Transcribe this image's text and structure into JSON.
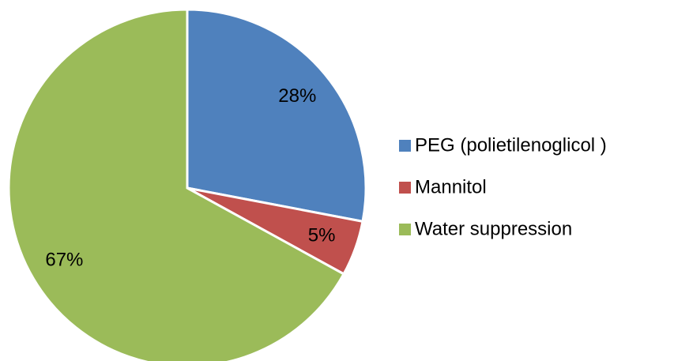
{
  "chart_data": {
    "type": "pie",
    "categories": [
      "PEG (polietilenoglicol )",
      "Mannitol",
      "Water suppression"
    ],
    "values": [
      28,
      5,
      67
    ],
    "value_labels": [
      "28%",
      "5%",
      "67%"
    ],
    "colors": [
      "#4f81bd",
      "#c0504d",
      "#9bbb59"
    ],
    "legend": "right"
  }
}
